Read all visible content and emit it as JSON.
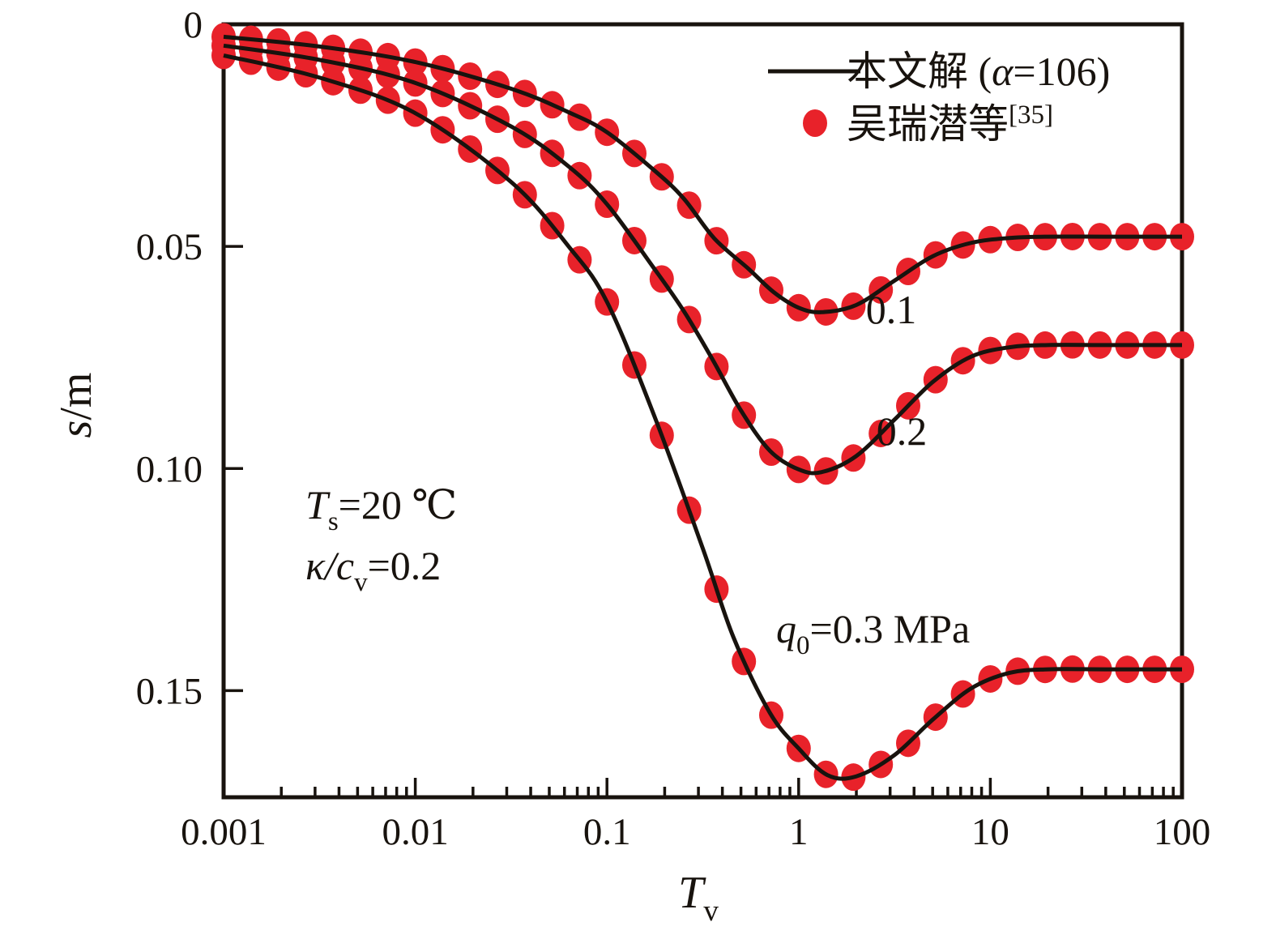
{
  "colors": {
    "background": "#ffffff",
    "line": "#18130e",
    "marker": "#e8222a",
    "text": "#18130e"
  },
  "legend": {
    "position": "top-right",
    "items": [
      {
        "marker": "line-sample",
        "pre": "本文解 (",
        "var": "α",
        "post": "=106)"
      },
      {
        "marker": "dot-sample",
        "main": "吴瑞潜等",
        "sup": "[35]"
      }
    ]
  },
  "annotations": {
    "temp": {
      "var": "T",
      "sub": "s",
      "rest": "=20 ℃"
    },
    "kappa": {
      "var": "κ/c",
      "sub": "v",
      "rest": "=0.2"
    },
    "curve1_label": "0.1",
    "curve2_label": "0.2",
    "curve3_label": {
      "var": "q",
      "sub": "0",
      "rest": "=0.3 MPa"
    }
  },
  "axes": {
    "x_title": {
      "var": "T",
      "sub": "v"
    },
    "y_title": {
      "var": "s",
      "rest": "/m"
    },
    "x_tick_labels": [
      "0.001",
      "0.01",
      "0.1",
      "1",
      "10",
      "100"
    ],
    "y_tick_labels": [
      "0",
      "0.05",
      "0.10",
      "0.15"
    ]
  },
  "chart_data": {
    "type": "line",
    "title": "",
    "xlabel": "Tv",
    "ylabel": "s/m",
    "x_scale": "log",
    "y_direction": "down",
    "x_range": [
      0.001,
      100
    ],
    "y_range": [
      0,
      0.174
    ],
    "x_ticks": [
      0.001,
      0.01,
      0.1,
      1,
      10,
      100
    ],
    "y_ticks": [
      0,
      0.05,
      0.1,
      0.15
    ],
    "grid": false,
    "legend_position": "top-right",
    "marker_log_step": 0.142857,
    "series": [
      {
        "name": "q0=0.1 MPa",
        "label": "0.1",
        "points": [
          [
            -3,
            0.0028
          ],
          [
            -2.5,
            0.005
          ],
          [
            -2,
            0.0085
          ],
          [
            -1.5,
            0.0145
          ],
          [
            -1.2,
            0.0198
          ],
          [
            -1,
            0.0243
          ],
          [
            -0.75,
            0.033
          ],
          [
            -0.6,
            0.0392
          ],
          [
            -0.44,
            0.0482
          ],
          [
            -0.26,
            0.0551
          ],
          [
            -0.13,
            0.0603
          ],
          [
            0,
            0.0638
          ],
          [
            0.12,
            0.0648
          ],
          [
            0.3,
            0.0632
          ],
          [
            0.5,
            0.0577
          ],
          [
            0.7,
            0.0522
          ],
          [
            0.9,
            0.0492
          ],
          [
            1.1,
            0.0481
          ],
          [
            1.3,
            0.0478
          ],
          [
            1.6,
            0.0478
          ],
          [
            2,
            0.0478
          ]
        ]
      },
      {
        "name": "q0=0.2 MPa",
        "label": "0.2",
        "points": [
          [
            -3,
            0.0048
          ],
          [
            -2.5,
            0.008
          ],
          [
            -2,
            0.0132
          ],
          [
            -1.5,
            0.023
          ],
          [
            -1.2,
            0.032
          ],
          [
            -1,
            0.0405
          ],
          [
            -0.76,
            0.0546
          ],
          [
            -0.6,
            0.0645
          ],
          [
            -0.45,
            0.0754
          ],
          [
            -0.3,
            0.087
          ],
          [
            -0.15,
            0.096
          ],
          [
            0,
            0.1002
          ],
          [
            0.12,
            0.1008
          ],
          [
            0.3,
            0.0972
          ],
          [
            0.5,
            0.089
          ],
          [
            0.7,
            0.0805
          ],
          [
            0.9,
            0.0748
          ],
          [
            1.1,
            0.0727
          ],
          [
            1.3,
            0.0722
          ],
          [
            1.6,
            0.0722
          ],
          [
            2,
            0.0722
          ]
        ]
      },
      {
        "name": "q0=0.3 MPa",
        "label": "q0=0.3 MPa",
        "points": [
          [
            -3,
            0.007
          ],
          [
            -2.5,
            0.012
          ],
          [
            -2,
            0.02
          ],
          [
            -1.5,
            0.0355
          ],
          [
            -1.2,
            0.05
          ],
          [
            -1,
            0.0625
          ],
          [
            -0.75,
            0.0885
          ],
          [
            -0.5,
            0.118
          ],
          [
            -0.34,
            0.138
          ],
          [
            -0.15,
            0.155
          ],
          [
            0,
            0.163
          ],
          [
            0.15,
            0.169
          ],
          [
            0.3,
            0.1693
          ],
          [
            0.5,
            0.1645
          ],
          [
            0.7,
            0.1565
          ],
          [
            0.9,
            0.1495
          ],
          [
            1.1,
            0.146
          ],
          [
            1.3,
            0.1452
          ],
          [
            1.6,
            0.1452
          ],
          [
            2,
            0.1452
          ]
        ]
      }
    ]
  }
}
